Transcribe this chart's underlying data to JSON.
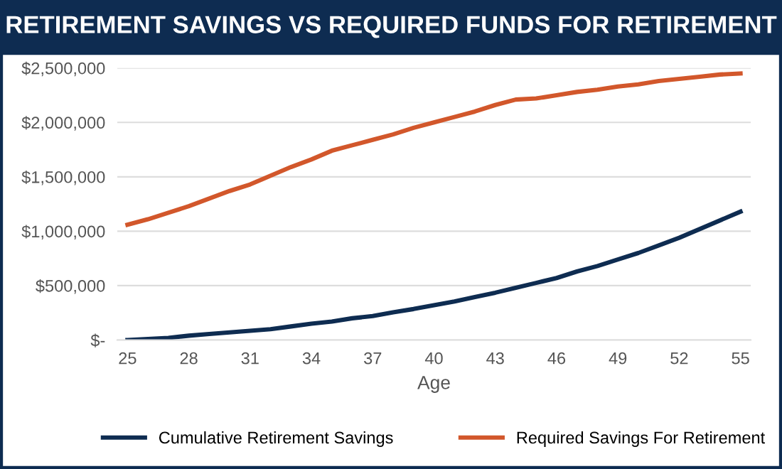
{
  "chart_data": {
    "type": "line",
    "title": "RETIREMENT SAVINGS VS REQUIRED FUNDS FOR RETIREMENT",
    "xlabel": "Age",
    "x": [
      25,
      26,
      27,
      28,
      29,
      30,
      31,
      32,
      33,
      34,
      35,
      36,
      37,
      38,
      39,
      40,
      41,
      42,
      43,
      44,
      45,
      46,
      47,
      48,
      49,
      50,
      51,
      52,
      53,
      54,
      55
    ],
    "series": [
      {
        "name": "Cumulative Retirement Savings",
        "color": "#0e2c51",
        "values": [
          0,
          10000,
          20000,
          40000,
          55000,
          70000,
          85000,
          100000,
          125000,
          150000,
          170000,
          200000,
          220000,
          255000,
          285000,
          320000,
          355000,
          395000,
          435000,
          480000,
          525000,
          570000,
          630000,
          680000,
          740000,
          800000,
          870000,
          940000,
          1020000,
          1100000,
          1180000
        ]
      },
      {
        "name": "Required Savings For Retirement",
        "color": "#d2572b",
        "values": [
          1060000,
          1110000,
          1170000,
          1230000,
          1300000,
          1370000,
          1430000,
          1510000,
          1590000,
          1660000,
          1740000,
          1790000,
          1840000,
          1890000,
          1950000,
          2000000,
          2050000,
          2100000,
          2160000,
          2210000,
          2220000,
          2250000,
          2280000,
          2300000,
          2330000,
          2350000,
          2380000,
          2400000,
          2420000,
          2440000,
          2450000
        ]
      }
    ],
    "xlim": [
      24.5,
      55.5
    ],
    "xticks": [
      25,
      28,
      31,
      34,
      37,
      40,
      43,
      46,
      49,
      52,
      55
    ],
    "ylim": [
      0,
      2500000
    ],
    "yticks": [
      {
        "value": 0,
        "label": "$-"
      },
      {
        "value": 500000,
        "label": "$500,000"
      },
      {
        "value": 1000000,
        "label": "$1,000,000"
      },
      {
        "value": 1500000,
        "label": "$1,500,000"
      },
      {
        "value": 2000000,
        "label": "$2,000,000"
      },
      {
        "value": 2500000,
        "label": "$2,500,000"
      }
    ],
    "grid": "y",
    "legend": "bottom",
    "marker": "none",
    "line_style": "solid"
  }
}
